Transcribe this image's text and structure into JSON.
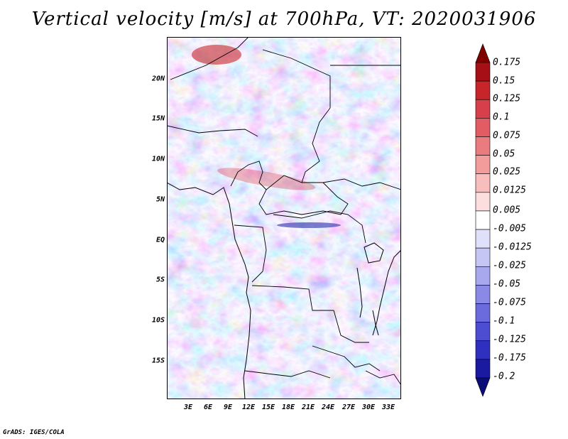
{
  "title": "Vertical velocity [m/s] at 700hPa, VT: 2020031906",
  "credit": "GrADS: IGES/COLA",
  "lat_labels": [
    "20N",
    "15N",
    "10N",
    "5N",
    "EQ",
    "5S",
    "10S",
    "15S"
  ],
  "lon_labels": [
    "3E",
    "6E",
    "9E",
    "12E",
    "15E",
    "18E",
    "21E",
    "24E",
    "27E",
    "30E",
    "33E"
  ],
  "colorbar": {
    "labels": [
      "0.175",
      "0.15",
      "0.125",
      "0.1",
      "0.075",
      "0.05",
      "0.025",
      "0.0125",
      "0.005",
      "-0.005",
      "-0.0125",
      "-0.025",
      "-0.05",
      "-0.075",
      "-0.1",
      "-0.125",
      "-0.175",
      "-0.2"
    ],
    "colors": [
      "#800000",
      "#a50f15",
      "#c7252a",
      "#d7404a",
      "#e15d63",
      "#ea7b7f",
      "#f29c9c",
      "#f8bdbd",
      "#fcdede",
      "#ffffff",
      "#e0e0fb",
      "#c6c6f4",
      "#a8a8ee",
      "#8a8ae6",
      "#6b6bdd",
      "#4d4dd2",
      "#3030c0",
      "#1a1aa0",
      "#0c0c78"
    ]
  }
}
